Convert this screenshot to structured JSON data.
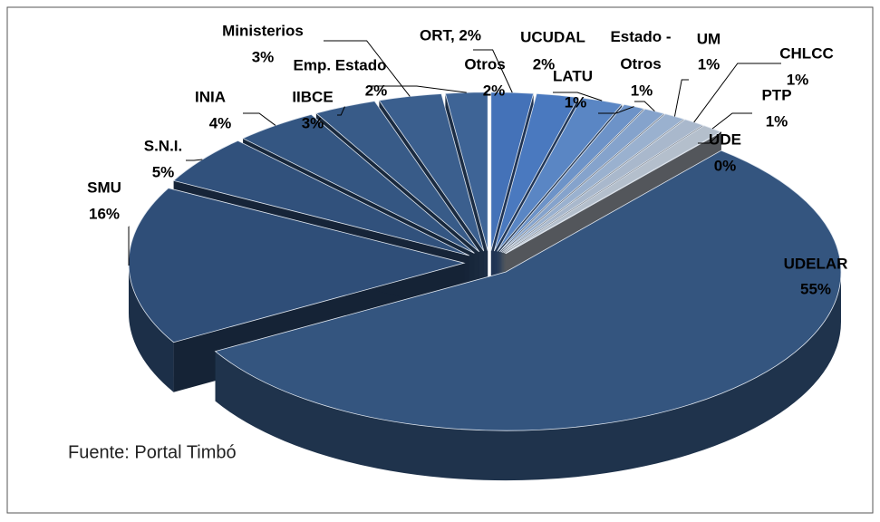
{
  "chart_data": {
    "type": "pie",
    "three_d": true,
    "exploded": true,
    "categories": [
      "UDELAR",
      "SMU",
      "S.N.I.",
      "INIA",
      "IIBCE",
      "Ministerios",
      "Emp. Estado",
      null,
      "Otros",
      "UCUDAL",
      "LATU",
      "Estado - Otros",
      "UM",
      "CHLCC",
      "PTP",
      "UDE"
    ],
    "values": [
      55,
      16,
      5,
      4,
      3,
      3,
      2,
      2,
      2,
      2,
      1,
      1,
      1,
      1,
      1,
      0
    ],
    "value_labels": [
      "55%",
      "16%",
      "5%",
      "4%",
      "3%",
      "3%",
      "2%",
      "ORT, 2%",
      "2%",
      "2%",
      "1%",
      "1%",
      "1%",
      "1%",
      "1%",
      "0%"
    ],
    "colors": [
      "#34557f",
      "#2f4e78",
      "#31517c",
      "#345682",
      "#385b88",
      "#3b5f8e",
      "#3e6496",
      "#4472b8",
      "#4a79bf",
      "#5a86c4",
      "#6d93c8",
      "#85a3cc",
      "#9ab1cf",
      "#a9b8cc",
      "#b4bfcc",
      "#b9c0ca"
    ],
    "source": "Fuente: Portal Timbó"
  }
}
